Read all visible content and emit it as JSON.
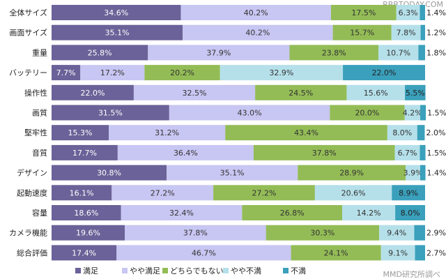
{
  "watermark_top": "RBBTODAY.COM",
  "watermark_bottom": "MMD研究所調べ",
  "chart_data": {
    "type": "bar",
    "orientation": "horizontal",
    "stacked": true,
    "xlim": [
      0,
      100
    ],
    "categories": [
      "全体サイズ",
      "画面サイズ",
      "重量",
      "バッテリー",
      "操作性",
      "画質",
      "堅牢性",
      "音質",
      "デザイン",
      "起動速度",
      "容量",
      "カメラ機能",
      "総合評価"
    ],
    "series": [
      {
        "name": "満足",
        "color": "#6a6298",
        "text_color": "#ffffff",
        "values": [
          34.6,
          35.1,
          25.8,
          7.7,
          22.0,
          31.5,
          15.3,
          17.7,
          30.8,
          16.1,
          18.6,
          19.6,
          17.4
        ],
        "labels": [
          "34.6%",
          "35.1%",
          "25.8%",
          "7.7%",
          "22.0%",
          "31.5%",
          "15.3%",
          "17.7%",
          "30.8%",
          "16.1%",
          "18.6%",
          "19.6%",
          "17.4%"
        ]
      },
      {
        "name": "やや満足",
        "color": "#c8c6f2",
        "text_color": "#333333",
        "values": [
          40.2,
          40.2,
          37.9,
          17.2,
          32.5,
          43.0,
          31.2,
          36.4,
          35.1,
          27.2,
          32.4,
          37.8,
          46.7
        ],
        "labels": [
          "40.2%",
          "40.2%",
          "37.9%",
          "17.2%",
          "32.5%",
          "43.0%",
          "31.2%",
          "36.4%",
          "35.1%",
          "27.2%",
          "32.4%",
          "37.8%",
          "46.7%"
        ]
      },
      {
        "name": "どちらでもない",
        "color": "#93bc56",
        "text_color": "#333333",
        "values": [
          17.5,
          15.7,
          23.8,
          20.2,
          24.5,
          20.0,
          43.4,
          37.8,
          28.9,
          27.2,
          26.8,
          30.3,
          24.1
        ],
        "labels": [
          "17.5%",
          "15.7%",
          "23.8%",
          "20.2%",
          "24.5%",
          "20.0%",
          "43.4%",
          "37.8%",
          "28.9%",
          "27.2%",
          "26.8%",
          "30.3%",
          "24.1%"
        ]
      },
      {
        "name": "やや不満",
        "color": "#b5e0ea",
        "text_color": "#333333",
        "values": [
          6.3,
          7.8,
          10.7,
          32.9,
          15.6,
          4.2,
          8.0,
          6.7,
          3.9,
          20.6,
          14.2,
          9.4,
          9.1
        ],
        "labels": [
          "6.3%",
          "7.8%",
          "10.7%",
          "32.9%",
          "15.6%",
          "4.2%",
          "8.0%",
          "6.7%",
          "3.9%",
          "20.6%",
          "14.2%",
          "9.4%",
          "9.1%"
        ]
      },
      {
        "name": "不満",
        "color": "#3aa0bb",
        "text_color": "#222222",
        "values": [
          1.4,
          1.2,
          1.8,
          22.0,
          5.5,
          1.5,
          2.0,
          1.5,
          1.4,
          8.9,
          8.0,
          2.9,
          2.7
        ],
        "labels": [
          "1.4%",
          "1.2%",
          "1.8%",
          "22.0%",
          "5.5%",
          "1.5%",
          "2.0%",
          "1.5%",
          "1.4%",
          "8.9%",
          "8.0%",
          "2.9%",
          "2.7%"
        ]
      }
    ],
    "legend_position": "bottom"
  }
}
